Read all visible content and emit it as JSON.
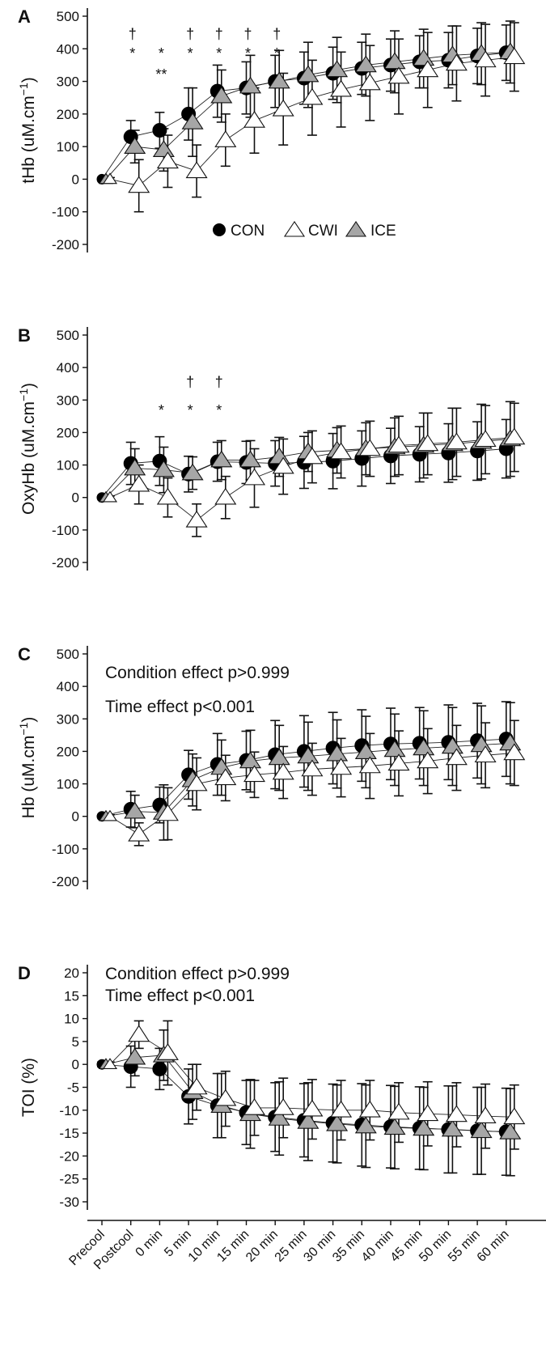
{
  "chart_data": {
    "type": "line",
    "categories": [
      "Precool",
      "Postcool",
      "0 min",
      "5 min",
      "10 min",
      "15 min",
      "20 min",
      "25 min",
      "30 min",
      "35 min",
      "40 min",
      "45 min",
      "50 min",
      "55 min",
      "60 min"
    ],
    "legend": {
      "placement": "bottom-center (panel A)",
      "entries": [
        "CON",
        "CWI",
        "ICE"
      ]
    },
    "colors": {
      "CON": "#000000",
      "CWI": "#ffffff",
      "ICE": "#a6a6a6"
    },
    "panels": [
      {
        "letter": "A",
        "ylabel": "tHb (uM.cm",
        "ylabel_sup": "−1",
        "ylabel_end": ")",
        "ylim": [
          -200,
          500
        ],
        "yticks": [
          500,
          400,
          300,
          200,
          100,
          0,
          -100,
          -200
        ],
        "annotations": [],
        "marks": [
          {
            "cat": 1,
            "row": 0,
            "text": "†"
          },
          {
            "cat": 3,
            "row": 0,
            "text": "†"
          },
          {
            "cat": 4,
            "row": 0,
            "text": "†"
          },
          {
            "cat": 5,
            "row": 0,
            "text": "†"
          },
          {
            "cat": 6,
            "row": 0,
            "text": "†"
          },
          {
            "cat": 1,
            "row": 1,
            "text": "*"
          },
          {
            "cat": 2,
            "row": 1,
            "text": "*"
          },
          {
            "cat": 3,
            "row": 1,
            "text": "*"
          },
          {
            "cat": 4,
            "row": 1,
            "text": "*"
          },
          {
            "cat": 5,
            "row": 1,
            "text": "*"
          },
          {
            "cat": 6,
            "row": 1,
            "text": "*"
          },
          {
            "cat": 2,
            "row": 2,
            "text": "**"
          }
        ],
        "series": [
          {
            "name": "CON",
            "values": [
              0,
              130,
              150,
              200,
              270,
              280,
              300,
              310,
              325,
              340,
              350,
              360,
              365,
              378,
              388
            ],
            "err": [
              5,
              50,
              55,
              80,
              80,
              80,
              80,
              80,
              80,
              80,
              80,
              80,
              85,
              85,
              85
            ]
          },
          {
            "name": "CWI",
            "values": [
              0,
              -20,
              55,
              25,
              120,
              180,
              215,
              250,
              275,
              295,
              315,
              335,
              355,
              365,
              375
            ],
            "err": [
              5,
              80,
              80,
              80,
              80,
              100,
              110,
              115,
              115,
              115,
              115,
              115,
              115,
              110,
              105
            ]
          },
          {
            "name": "ICE",
            "values": [
              0,
              100,
              90,
              175,
              255,
              285,
              300,
              320,
              335,
              350,
              360,
              370,
              380,
              385,
              390
            ],
            "err": [
              5,
              50,
              65,
              105,
              80,
              95,
              95,
              100,
              100,
              95,
              95,
              90,
              90,
              95,
              95
            ]
          }
        ]
      },
      {
        "letter": "B",
        "ylabel": "OxyHb (uM.cm",
        "ylabel_sup": "−1",
        "ylabel_end": ")",
        "ylim": [
          -200,
          500
        ],
        "yticks": [
          500,
          400,
          300,
          200,
          100,
          0,
          -100,
          -200
        ],
        "annotations": [],
        "marks": [
          {
            "cat": 3,
            "row": 0,
            "text": "†"
          },
          {
            "cat": 4,
            "row": 0,
            "text": "†"
          },
          {
            "cat": 2,
            "row": 1,
            "text": "*"
          },
          {
            "cat": 3,
            "row": 1,
            "text": "*"
          },
          {
            "cat": 4,
            "row": 1,
            "text": "*"
          }
        ],
        "series": [
          {
            "name": "CON",
            "values": [
              0,
              105,
              112,
              72,
              110,
              108,
              105,
              108,
              112,
              120,
              128,
              133,
              137,
              143,
              150
            ],
            "err": [
              5,
              65,
              75,
              55,
              60,
              65,
              70,
              80,
              85,
              85,
              85,
              85,
              90,
              90,
              90
            ]
          },
          {
            "name": "CWI",
            "values": [
              0,
              40,
              0,
              -70,
              0,
              60,
              95,
              125,
              140,
              150,
              160,
              165,
              170,
              178,
              185
            ],
            "err": [
              5,
              60,
              60,
              50,
              65,
              90,
              85,
              80,
              80,
              85,
              90,
              95,
              105,
              105,
              105
            ]
          },
          {
            "name": "ICE",
            "values": [
              0,
              90,
              85,
              75,
              115,
              115,
              125,
              140,
              145,
              150,
              155,
              160,
              165,
              172,
              180
            ],
            "err": [
              5,
              60,
              70,
              50,
              60,
              60,
              60,
              60,
              70,
              80,
              90,
              100,
              110,
              115,
              115
            ]
          }
        ]
      },
      {
        "letter": "C",
        "ylabel": "Hb (uM.cm",
        "ylabel_sup": "−1",
        "ylabel_end": ")",
        "ylim": [
          -200,
          500
        ],
        "yticks": [
          500,
          400,
          300,
          200,
          100,
          0,
          -100,
          -200
        ],
        "annotations": [
          "Condition effect p>0.999",
          "Time effect p<0.001"
        ],
        "marks": [],
        "series": [
          {
            "name": "CON",
            "values": [
              0,
              22,
              35,
              128,
              160,
              172,
              190,
              200,
              210,
              218,
              223,
              225,
              228,
              233,
              238
            ],
            "err": [
              5,
              55,
              55,
              75,
              95,
              90,
              105,
              110,
              110,
              110,
              110,
              110,
              115,
              115,
              115
            ]
          },
          {
            "name": "CWI",
            "values": [
              0,
              -55,
              8,
              100,
              118,
              128,
              135,
              145,
              150,
              155,
              163,
              170,
              180,
              188,
              195
            ],
            "err": [
              5,
              35,
              80,
              80,
              70,
              70,
              80,
              80,
              90,
              100,
              100,
              100,
              100,
              100,
              100
            ]
          },
          {
            "name": "ICE",
            "values": [
              0,
              15,
              12,
              112,
              150,
              170,
              180,
              185,
              192,
              198,
              205,
              210,
              215,
              220,
              225
            ],
            "err": [
              5,
              50,
              85,
              80,
              85,
              95,
              100,
              105,
              105,
              110,
              110,
              115,
              120,
              120,
              125
            ]
          }
        ]
      },
      {
        "letter": "D",
        "ylabel": "TOI (%)",
        "ylabel_sup": "",
        "ylabel_end": "",
        "ylim": [
          -30,
          20
        ],
        "yticks": [
          20,
          15,
          10,
          5,
          0,
          -5,
          -10,
          -15,
          -20,
          -25,
          -30
        ],
        "annotations": [
          "Condition effect p>0.999",
          "Time effect p<0.001"
        ],
        "marks": [],
        "series": [
          {
            "name": "CON",
            "values": [
              0,
              -0.5,
              -1,
              -7,
              -9,
              -10.5,
              -11.5,
              -12.2,
              -12.8,
              -13.2,
              -13.6,
              -13.9,
              -14.2,
              -14.5,
              -14.7
            ],
            "err": [
              0.5,
              4.5,
              4.5,
              6,
              7,
              7,
              7.5,
              8,
              8.5,
              9,
              9,
              9,
              9.5,
              9.5,
              9.5
            ]
          },
          {
            "name": "CWI",
            "values": [
              0,
              6.5,
              2.5,
              -5,
              -7.5,
              -9.5,
              -9.5,
              -9.8,
              -10,
              -10,
              -10.5,
              -10.8,
              -11,
              -11.3,
              -11.5
            ],
            "err": [
              0.5,
              3,
              7,
              5,
              6,
              6,
              6.5,
              6.5,
              6.5,
              6.5,
              6.5,
              7,
              7,
              7,
              7
            ]
          },
          {
            "name": "ICE",
            "values": [
              0,
              1.5,
              2,
              -6,
              -9,
              -10.8,
              -11.8,
              -12.5,
              -13,
              -13.5,
              -13.8,
              -14,
              -14.2,
              -14.5,
              -14.8
            ],
            "err": [
              0.5,
              4,
              5.5,
              6,
              7,
              7.5,
              8,
              8.5,
              8.5,
              9,
              9,
              9,
              9.5,
              9.5,
              9.5
            ]
          }
        ]
      }
    ]
  }
}
